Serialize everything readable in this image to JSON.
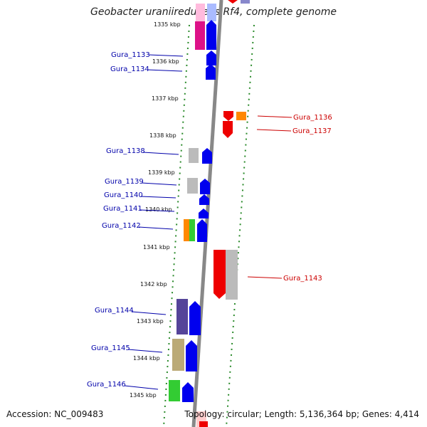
{
  "title": "Geobacter uraniireducens Rf4, complete genome",
  "footer": {
    "accession": "Accession: NC_009483",
    "topology": "Topology: circular; Length: 5,136,364 bp; Genes: 4,414"
  },
  "colors": {
    "reverse_strand_label": "#0000aa",
    "forward_strand_label": "#cc0000",
    "backbone": "#888888",
    "ticks": "#2a8a2a"
  },
  "ruler": [
    "1335 kbp",
    "1336 kbp",
    "1337 kbp",
    "1338 kbp",
    "1339 kbp",
    "1340 kbp",
    "1341 kbp",
    "1342 kbp",
    "1343 kbp",
    "1344 kbp",
    "1345 kbp"
  ],
  "genes_left": [
    {
      "name": "Gura_1133",
      "color": "#0000ee",
      "cog_color": "#dd1188"
    },
    {
      "name": "Gura_1134",
      "color": "#0000ee",
      "cog_color": ""
    },
    {
      "name": "Gura_1138",
      "color": "#0000ee",
      "cog_color": "#bbbbbb"
    },
    {
      "name": "Gura_1139",
      "color": "#0000ee",
      "cog_color": "#bbbbbb"
    },
    {
      "name": "Gura_1140",
      "color": "#0000ee",
      "cog_color": ""
    },
    {
      "name": "Gura_1141",
      "color": "#0000ee",
      "cog_color": ""
    },
    {
      "name": "Gura_1142",
      "color": "#0000ee",
      "cog_color": "#ff8800"
    },
    {
      "name": "Gura_1144",
      "color": "#0000ee",
      "cog_color": "#554499"
    },
    {
      "name": "Gura_1145",
      "color": "#0000ee",
      "cog_color": "#bbaa77"
    },
    {
      "name": "Gura_1146",
      "color": "#0000ee",
      "cog_color": "#33cc33"
    }
  ],
  "genes_right": [
    {
      "name": "Gura_1136",
      "color": "#ee0000",
      "cog_color": "#ff8800"
    },
    {
      "name": "Gura_1137",
      "color": "#ee0000",
      "cog_color": ""
    },
    {
      "name": "Gura_1143",
      "color": "#ee0000",
      "cog_color": "#bbbbbb"
    }
  ]
}
